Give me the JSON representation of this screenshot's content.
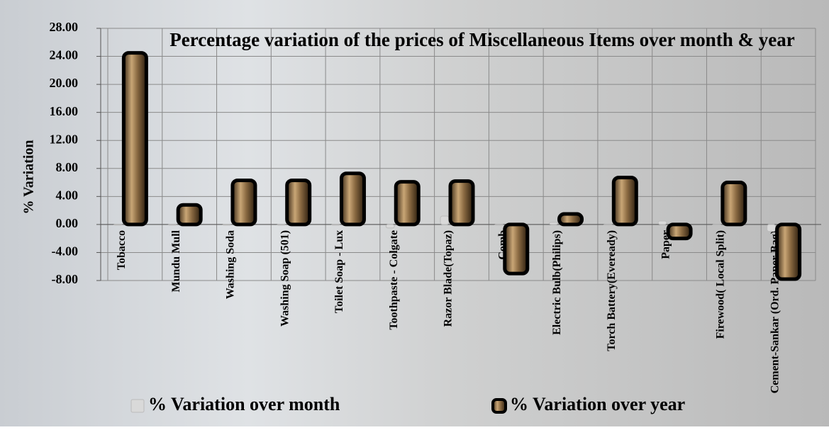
{
  "chart_data": {
    "type": "bar",
    "title": "Percentage variation of the prices of Miscellaneous Items over month & year",
    "y_label": "% Variation",
    "categories": [
      "Tobacco",
      "Mundu Mull",
      "Washing Soda",
      "Washing Soap (501)",
      "Toilet Soap - Lux",
      "Toothpaste - Colgate",
      "Razor Blade(Topaz)",
      "Comb",
      "Electric Bulb(Philips)",
      "Torch Battery(Eveready)",
      "Paper",
      "Firewood( Local Split)",
      "Cement-Sankar (Ord. Paper Bag)"
    ],
    "series": [
      {
        "name": "% Variation over month",
        "color": "#d9d9d9",
        "values": [
          0,
          0,
          0,
          0,
          0,
          -0.5,
          1.2,
          0,
          0.3,
          0,
          0.5,
          0,
          -1.0
        ]
      },
      {
        "name": "% Variation over year",
        "color": "#7a5a32",
        "values": [
          24.5,
          2.8,
          6.3,
          6.3,
          7.3,
          6.1,
          6.2,
          -7.0,
          1.5,
          6.7,
          -2.0,
          6.0,
          -7.8
        ]
      }
    ],
    "ylim": [
      -8,
      28
    ],
    "yticks": [
      {
        "value": -8,
        "label": "-8.00"
      },
      {
        "value": -4,
        "label": "-4.00"
      },
      {
        "value": 0,
        "label": "0.00"
      },
      {
        "value": 4,
        "label": "4.00"
      },
      {
        "value": 8,
        "label": "8.00"
      },
      {
        "value": 12,
        "label": "12.00"
      },
      {
        "value": 16,
        "label": "16.00"
      },
      {
        "value": 20,
        "label": "20.00"
      },
      {
        "value": 24,
        "label": "24.00"
      },
      {
        "value": 28,
        "label": "28.00"
      }
    ],
    "grid": true,
    "legend": "bottom"
  }
}
